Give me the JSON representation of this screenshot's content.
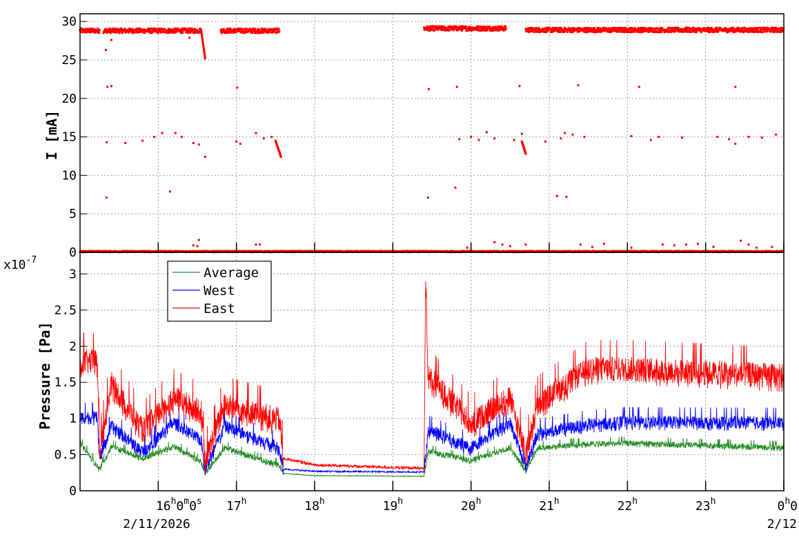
{
  "chart_data": [
    {
      "type": "scatter",
      "ylabel": "I [mA]",
      "ylim": [
        0,
        31
      ],
      "y_ticks": [
        "0",
        "5",
        "10",
        "15",
        "20",
        "25",
        "30"
      ],
      "grid": true,
      "x_range_hours": [
        15,
        24
      ],
      "series": [
        {
          "color": "#ff0000",
          "segments": [
            {
              "x_from": 15.0,
              "x_to": 15.25,
              "y": 28.8
            },
            {
              "x_from": 15.3,
              "x_to": 16.55,
              "y": 28.8
            },
            {
              "x_from": 16.8,
              "x_to": 17.55,
              "y": 28.8
            },
            {
              "x_from": 19.4,
              "x_to": 20.45,
              "y": 29.1
            },
            {
              "x_from": 20.7,
              "x_to": 24.0,
              "y": 28.9
            },
            {
              "x_from": 15.0,
              "x_to": 24.0,
              "y": 0.1
            }
          ],
          "drops": [
            {
              "x_from": 16.55,
              "x_to": 16.6,
              "y_from": 28.8,
              "y_to": 25.2
            },
            {
              "x_from": 17.5,
              "x_to": 17.57,
              "y_from": 14.5,
              "y_to": 12.4
            },
            {
              "x_from": 20.65,
              "x_to": 20.7,
              "y_from": 14.4,
              "y_to": 12.8
            }
          ],
          "points": [
            [
              15.33,
              26.3
            ],
            [
              15.4,
              27.6
            ],
            [
              15.35,
              21.5
            ],
            [
              15.4,
              21.6
            ],
            [
              16.4,
              27.9
            ],
            [
              15.34,
              7.1
            ],
            [
              16.15,
              7.9
            ],
            [
              17.01,
              21.4
            ],
            [
              19.46,
              21.2
            ],
            [
              19.82,
              21.5
            ],
            [
              20.62,
              21.6
            ],
            [
              21.37,
              21.7
            ],
            [
              22.15,
              21.5
            ],
            [
              23.38,
              21.5
            ],
            [
              19.45,
              7.1
            ],
            [
              19.8,
              8.4
            ],
            [
              21.1,
              7.3
            ],
            [
              21.22,
              7.2
            ],
            [
              15.34,
              14.3
            ],
            [
              15.58,
              14.2
            ],
            [
              15.8,
              14.5
            ],
            [
              15.95,
              15.0
            ],
            [
              16.05,
              15.5
            ],
            [
              16.22,
              15.5
            ],
            [
              16.3,
              15.0
            ],
            [
              16.45,
              14.2
            ],
            [
              16.52,
              14.0
            ],
            [
              16.6,
              12.4
            ],
            [
              17.0,
              14.4
            ],
            [
              17.05,
              14.1
            ],
            [
              17.25,
              15.5
            ],
            [
              17.35,
              14.8
            ],
            [
              17.45,
              15.0
            ],
            [
              19.85,
              14.7
            ],
            [
              20.0,
              15.0
            ],
            [
              20.1,
              14.6
            ],
            [
              20.2,
              15.6
            ],
            [
              20.3,
              14.8
            ],
            [
              20.55,
              14.6
            ],
            [
              20.65,
              15.4
            ],
            [
              20.95,
              14.4
            ],
            [
              21.15,
              14.8
            ],
            [
              21.2,
              15.5
            ],
            [
              21.3,
              15.3
            ],
            [
              21.45,
              15.0
            ],
            [
              22.05,
              15.1
            ],
            [
              22.3,
              14.6
            ],
            [
              22.4,
              15.0
            ],
            [
              22.7,
              14.9
            ],
            [
              23.15,
              15.0
            ],
            [
              23.3,
              14.7
            ],
            [
              23.38,
              14.1
            ],
            [
              23.55,
              15.0
            ],
            [
              23.72,
              14.9
            ],
            [
              23.9,
              15.3
            ],
            [
              16.52,
              1.6
            ],
            [
              16.5,
              0.8
            ],
            [
              16.45,
              0.9
            ],
            [
              17.25,
              1.0
            ],
            [
              17.3,
              1.0
            ],
            [
              19.95,
              0.6
            ],
            [
              20.3,
              1.3
            ],
            [
              20.4,
              1.0
            ],
            [
              20.5,
              0.8
            ],
            [
              20.7,
              1.0
            ],
            [
              21.4,
              1.0
            ],
            [
              21.55,
              0.7
            ],
            [
              21.7,
              1.1
            ],
            [
              22.05,
              0.6
            ],
            [
              22.45,
              1.0
            ],
            [
              22.6,
              0.9
            ],
            [
              22.75,
              1.0
            ],
            [
              22.9,
              1.1
            ],
            [
              23.1,
              0.7
            ],
            [
              23.45,
              1.5
            ],
            [
              23.55,
              1.0
            ],
            [
              23.65,
              0.6
            ],
            [
              23.85,
              0.7
            ]
          ]
        }
      ]
    },
    {
      "type": "line",
      "ylabel": "Pressure [Pa]",
      "y_multiplier": "x10",
      "y_multiplier_exp": "-7",
      "ylim": [
        0,
        3.3
      ],
      "y_ticks": [
        "0",
        "0.5",
        "1",
        "1.5",
        "2",
        "2.5",
        "3"
      ],
      "grid": true,
      "x_range_hours": [
        15,
        24
      ],
      "x_ticks": [
        {
          "hour": 16,
          "label": "16",
          "sup": "h",
          "extra": "0",
          "extra_sup": "m",
          "extra2": "0",
          "extra2_sup": "s"
        },
        {
          "hour": 17,
          "label": "17",
          "sup": "h"
        },
        {
          "hour": 18,
          "label": "18",
          "sup": "h"
        },
        {
          "hour": 19,
          "label": "19",
          "sup": "h"
        },
        {
          "hour": 20,
          "label": "20",
          "sup": "h"
        },
        {
          "hour": 21,
          "label": "21",
          "sup": "h"
        },
        {
          "hour": 22,
          "label": "22",
          "sup": "h"
        },
        {
          "hour": 23,
          "label": "23",
          "sup": "h"
        },
        {
          "hour": 24,
          "label": "0",
          "sup": "h",
          "extra": "0"
        }
      ],
      "date_left": "2/11/2026",
      "date_right": "2/12",
      "legend": {
        "placement": "top-left",
        "entries": [
          "Average",
          "West",
          "East"
        ]
      },
      "series": [
        {
          "name": "Average",
          "color": "#228b22",
          "profile": [
            [
              15.0,
              0.67
            ],
            [
              15.25,
              0.3
            ],
            [
              15.4,
              0.62
            ],
            [
              15.8,
              0.45
            ],
            [
              16.2,
              0.62
            ],
            [
              16.55,
              0.4
            ],
            [
              16.6,
              0.25
            ],
            [
              16.85,
              0.6
            ],
            [
              17.55,
              0.35
            ],
            [
              17.6,
              0.24
            ],
            [
              18.0,
              0.21
            ],
            [
              19.4,
              0.2
            ],
            [
              19.45,
              0.55
            ],
            [
              20.0,
              0.42
            ],
            [
              20.5,
              0.6
            ],
            [
              20.7,
              0.28
            ],
            [
              20.85,
              0.6
            ],
            [
              21.5,
              0.65
            ],
            [
              22.0,
              0.66
            ],
            [
              24.0,
              0.6
            ]
          ],
          "noise": 0.08
        },
        {
          "name": "West",
          "color": "#0000ff",
          "profile": [
            [
              15.0,
              1.02
            ],
            [
              15.22,
              1.02
            ],
            [
              15.25,
              0.45
            ],
            [
              15.4,
              0.9
            ],
            [
              15.8,
              0.55
            ],
            [
              16.2,
              0.95
            ],
            [
              16.55,
              0.7
            ],
            [
              16.6,
              0.3
            ],
            [
              16.85,
              0.9
            ],
            [
              17.55,
              0.6
            ],
            [
              17.6,
              0.3
            ],
            [
              18.0,
              0.27
            ],
            [
              19.4,
              0.26
            ],
            [
              19.45,
              0.85
            ],
            [
              20.0,
              0.6
            ],
            [
              20.5,
              0.95
            ],
            [
              20.7,
              0.35
            ],
            [
              20.85,
              0.8
            ],
            [
              21.5,
              0.92
            ],
            [
              22.0,
              0.96
            ],
            [
              24.0,
              0.95
            ]
          ],
          "noise": 0.18
        },
        {
          "name": "East",
          "color": "#ff0000",
          "profile": [
            [
              15.0,
              1.8
            ],
            [
              15.22,
              1.8
            ],
            [
              15.25,
              0.55
            ],
            [
              15.4,
              1.5
            ],
            [
              15.8,
              0.85
            ],
            [
              16.2,
              1.3
            ],
            [
              16.55,
              1.1
            ],
            [
              16.6,
              0.43
            ],
            [
              16.85,
              1.2
            ],
            [
              17.55,
              1.0
            ],
            [
              17.6,
              0.45
            ],
            [
              18.0,
              0.36
            ],
            [
              19.4,
              0.31
            ],
            [
              19.42,
              3.05
            ],
            [
              19.45,
              1.6
            ],
            [
              20.0,
              0.95
            ],
            [
              20.5,
              1.3
            ],
            [
              20.7,
              0.5
            ],
            [
              20.85,
              1.2
            ],
            [
              21.5,
              1.7
            ],
            [
              22.0,
              1.7
            ],
            [
              24.0,
              1.6
            ]
          ],
          "noise": 0.35
        }
      ]
    }
  ]
}
